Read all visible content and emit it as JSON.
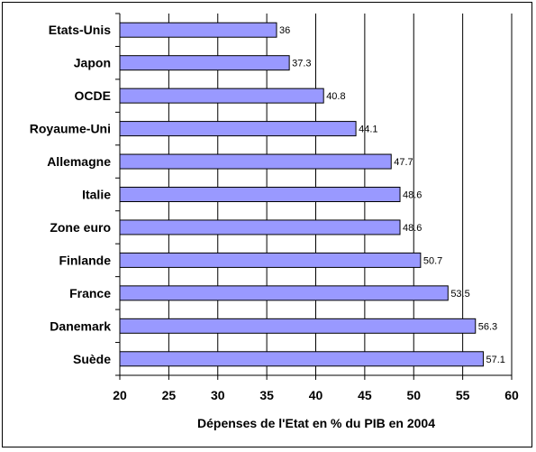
{
  "chart_data": {
    "type": "bar",
    "orientation": "horizontal",
    "categories": [
      "Etats-Unis",
      "Japon",
      "OCDE",
      "Royaume-Uni",
      "Allemagne",
      "Italie",
      "Zone euro",
      "Finlande",
      "France",
      "Danemark",
      "Suède"
    ],
    "values": [
      36,
      37.3,
      40.8,
      44.1,
      47.7,
      48.6,
      48.6,
      50.7,
      53.5,
      56.3,
      57.1
    ],
    "value_labels": [
      "36",
      "37.3",
      "40.8",
      "44.1",
      "47.7",
      "48.6",
      "48.6",
      "50.7",
      "53.5",
      "56.3",
      "57.1"
    ],
    "xlabel": "Dépenses de l'Etat en % du PIB en 2004",
    "xlim": [
      20,
      60
    ],
    "xticks": [
      "20",
      "25",
      "30",
      "35",
      "40",
      "45",
      "50",
      "55",
      "60"
    ],
    "grid": "vertical",
    "legend": "none",
    "bar_color": "#9999ff",
    "bar_border": "#000000"
  }
}
